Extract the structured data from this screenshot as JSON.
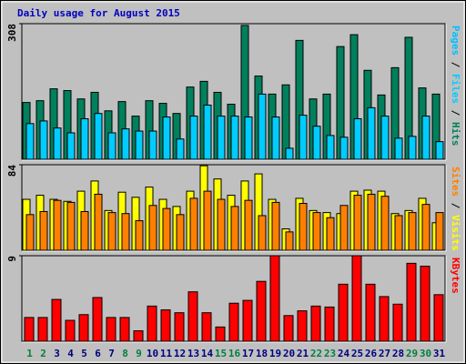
{
  "title": "Daily usage for August 2015",
  "chart_data": [
    {
      "type": "bar",
      "ylim": [
        0,
        308
      ],
      "yticks": [
        308
      ],
      "extra_legend": {
        "name": "Pages",
        "color": "#00c0ff"
      },
      "series": [
        {
          "name": "Hits",
          "color": "#00805c",
          "values": [
            129,
            133,
            160,
            156,
            137,
            152,
            110,
            131,
            98,
            133,
            127,
            104,
            164,
            177,
            152,
            125,
            304,
            189,
            148,
            169,
            270,
            137,
            148,
            256,
            283,
            202,
            146,
            208,
            277,
            162,
            148
          ]
        },
        {
          "name": "Files",
          "color": "#00ccff",
          "values": [
            81,
            87,
            71,
            60,
            92,
            104,
            60,
            69,
            64,
            64,
            96,
            46,
            98,
            123,
            98,
            98,
            96,
            148,
            96,
            25,
            100,
            75,
            54,
            50,
            92,
            117,
            98,
            48,
            52,
            98,
            40
          ]
        }
      ]
    },
    {
      "type": "bar",
      "ylim": [
        0,
        84
      ],
      "yticks": [
        84
      ],
      "series": [
        {
          "name": "Visits",
          "color": "#ffff00",
          "values": [
            50,
            54,
            50,
            48,
            58,
            68,
            39,
            57,
            52,
            62,
            50,
            43,
            58,
            83,
            70,
            54,
            68,
            75,
            50,
            21,
            51,
            39,
            37,
            36,
            58,
            59,
            58,
            36,
            39,
            51,
            27
          ]
        },
        {
          "name": "Sites",
          "color": "#ff8000",
          "values": [
            35,
            38,
            49,
            47,
            38,
            55,
            37,
            36,
            29,
            44,
            41,
            35,
            51,
            58,
            50,
            43,
            49,
            34,
            47,
            18,
            46,
            37,
            32,
            44,
            54,
            55,
            53,
            34,
            37,
            45,
            37
          ]
        }
      ]
    },
    {
      "type": "bar",
      "ylim": [
        0,
        9
      ],
      "yticks": [
        9
      ],
      "categories": [
        "1",
        "2",
        "3",
        "4",
        "5",
        "6",
        "7",
        "8",
        "9",
        "10",
        "11",
        "12",
        "13",
        "14",
        "15",
        "16",
        "17",
        "18",
        "19",
        "20",
        "21",
        "22",
        "23",
        "24",
        "25",
        "26",
        "27",
        "28",
        "29",
        "30",
        "31"
      ],
      "label_colors": [
        "#008040",
        "#008040",
        "#000080",
        "#000080",
        "#000080",
        "#000080",
        "#000080",
        "#008040",
        "#008040",
        "#000080",
        "#000080",
        "#000080",
        "#000080",
        "#000080",
        "#008040",
        "#008040",
        "#000080",
        "#000080",
        "#000080",
        "#000080",
        "#000080",
        "#008040",
        "#008040",
        "#000080",
        "#000080",
        "#000080",
        "#000080",
        "#000080",
        "#008040",
        "#008040",
        "#000080"
      ],
      "series": [
        {
          "name": "KBytes",
          "color": "#ff0000",
          "values": [
            2.5,
            2.5,
            4.4,
            2.2,
            2.8,
            4.6,
            2.5,
            2.5,
            1.1,
            3.7,
            3.3,
            3.0,
            5.2,
            3.0,
            1.5,
            4.0,
            4.3,
            6.3,
            9.0,
            2.7,
            3.2,
            3.7,
            3.6,
            6.0,
            9.0,
            6.0,
            4.7,
            3.9,
            8.2,
            7.9,
            4.9
          ]
        }
      ]
    }
  ]
}
